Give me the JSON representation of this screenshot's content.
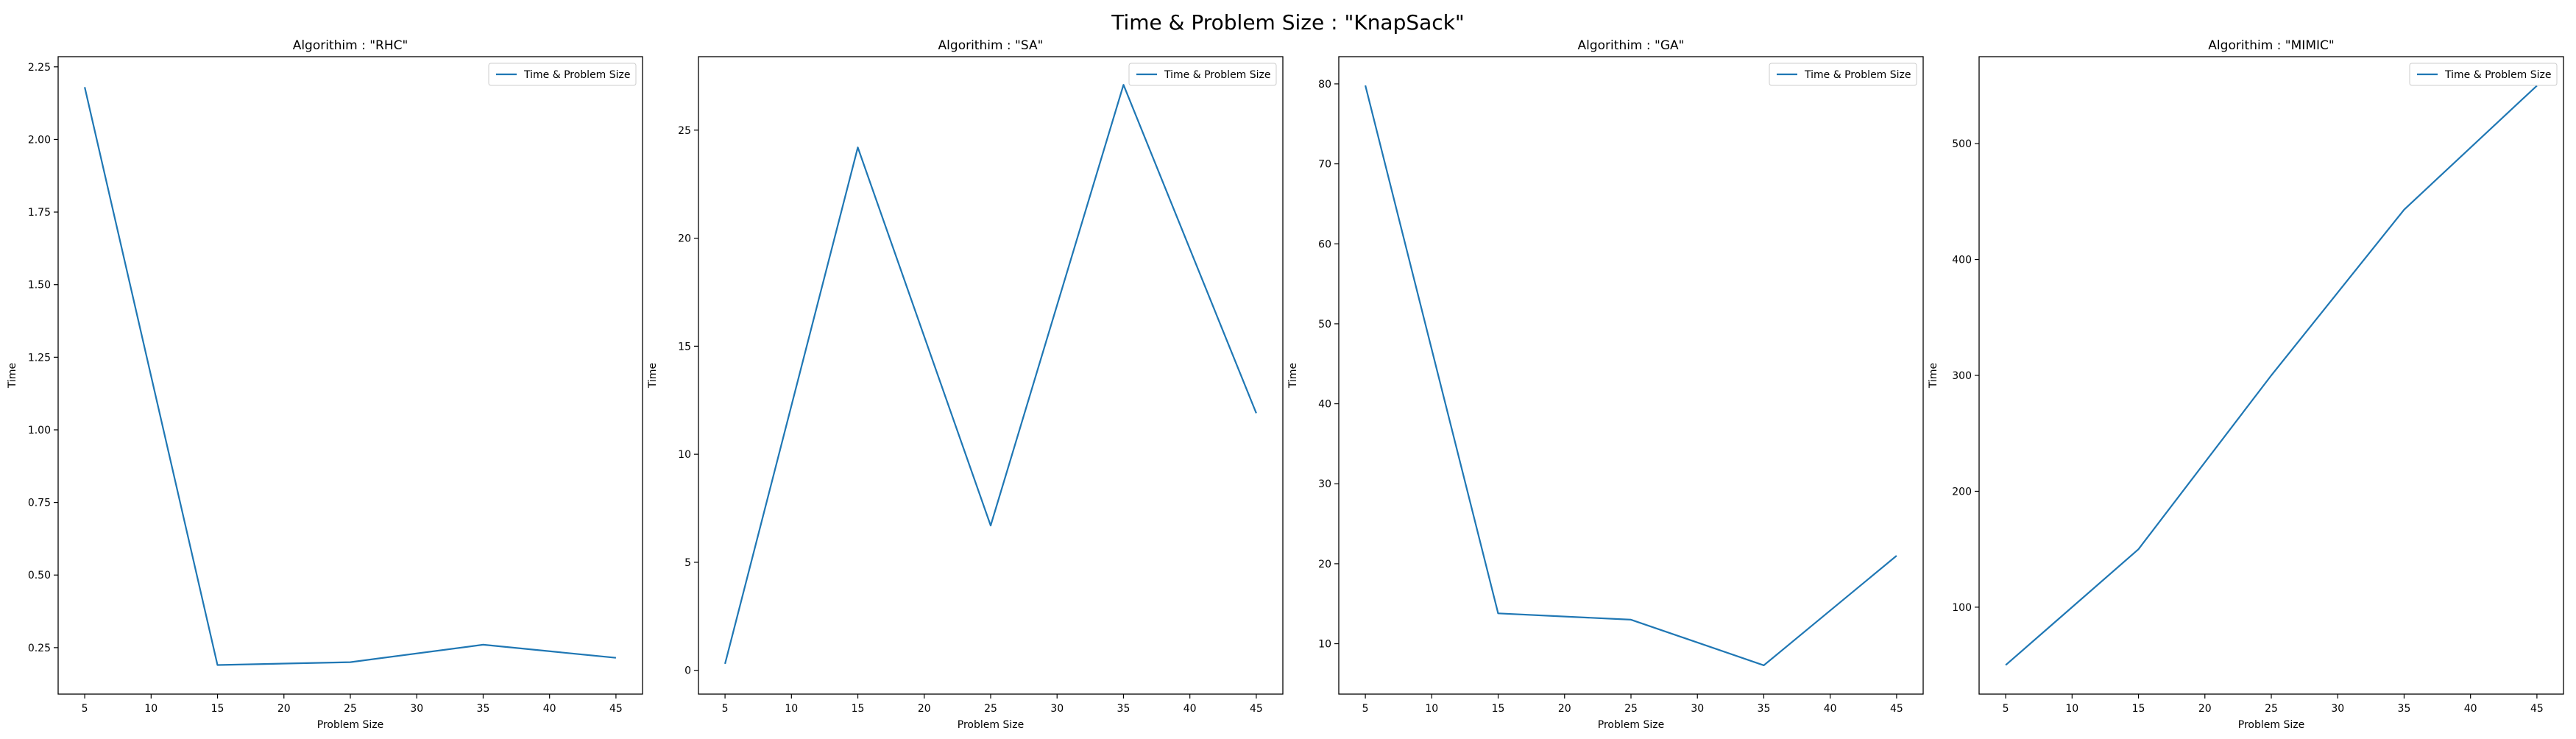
{
  "figure": {
    "suptitle": "Time & Problem Size : \"KnapSack\""
  },
  "colors": {
    "line": "#1f77b4",
    "axes": "#000000",
    "legend_border": "#cccccc"
  },
  "chart_data": [
    {
      "type": "line",
      "title": "Algorithim : \"RHC\"",
      "xlabel": "Problem Size",
      "ylabel": "Time",
      "legend_position": "top-right",
      "grid": false,
      "xlim": [
        3,
        47
      ],
      "ylim": [
        0.09,
        2.285
      ],
      "xticks": [
        5,
        10,
        15,
        20,
        25,
        30,
        35,
        40,
        45
      ],
      "xtick_labels": [
        "5",
        "10",
        "15",
        "20",
        "25",
        "30",
        "35",
        "40",
        "45"
      ],
      "yticks": [
        0.25,
        0.5,
        0.75,
        1.0,
        1.25,
        1.5,
        1.75,
        2.0,
        2.25
      ],
      "ytick_labels": [
        "0.25",
        "0.50",
        "0.75",
        "1.00",
        "1.25",
        "1.50",
        "1.75",
        "2.00",
        "2.25"
      ],
      "series": [
        {
          "name": "Time & Problem Size",
          "x": [
            5,
            15,
            25,
            35,
            45
          ],
          "y": [
            2.18,
            0.19,
            0.2,
            0.26,
            0.215
          ]
        }
      ]
    },
    {
      "type": "line",
      "title": "Algorithim : \"SA\"",
      "xlabel": "Problem Size",
      "ylabel": "Time",
      "legend_position": "top-right",
      "grid": false,
      "xlim": [
        3,
        47
      ],
      "ylim": [
        -1.1,
        28.4
      ],
      "xticks": [
        5,
        10,
        15,
        20,
        25,
        30,
        35,
        40,
        45
      ],
      "xtick_labels": [
        "5",
        "10",
        "15",
        "20",
        "25",
        "30",
        "35",
        "40",
        "45"
      ],
      "yticks": [
        0,
        5,
        10,
        15,
        20,
        25
      ],
      "ytick_labels": [
        "0",
        "5",
        "10",
        "15",
        "20",
        "25"
      ],
      "series": [
        {
          "name": "Time & Problem Size",
          "x": [
            5,
            15,
            25,
            35,
            45
          ],
          "y": [
            0.3,
            24.2,
            6.7,
            27.1,
            11.9
          ]
        }
      ]
    },
    {
      "type": "line",
      "title": "Algorithim : \"GA\"",
      "xlabel": "Problem Size",
      "ylabel": "Time",
      "legend_position": "top-right",
      "grid": false,
      "xlim": [
        3,
        47
      ],
      "ylim": [
        3.7,
        83.4
      ],
      "xticks": [
        5,
        10,
        15,
        20,
        25,
        30,
        35,
        40,
        45
      ],
      "xtick_labels": [
        "5",
        "10",
        "15",
        "20",
        "25",
        "30",
        "35",
        "40",
        "45"
      ],
      "yticks": [
        10,
        20,
        30,
        40,
        50,
        60,
        70,
        80
      ],
      "ytick_labels": [
        "10",
        "20",
        "30",
        "40",
        "50",
        "60",
        "70",
        "80"
      ],
      "series": [
        {
          "name": "Time & Problem Size",
          "x": [
            5,
            15,
            25,
            35,
            45
          ],
          "y": [
            79.8,
            13.8,
            13.0,
            7.3,
            21.0
          ]
        }
      ]
    },
    {
      "type": "line",
      "title": "Algorithim : \"MIMIC\"",
      "xlabel": "Problem Size",
      "ylabel": "Time",
      "legend_position": "top-right",
      "grid": false,
      "xlim": [
        3,
        47
      ],
      "ylim": [
        25,
        575
      ],
      "xticks": [
        5,
        10,
        15,
        20,
        25,
        30,
        35,
        40,
        45
      ],
      "xtick_labels": [
        "5",
        "10",
        "15",
        "20",
        "25",
        "30",
        "35",
        "40",
        "45"
      ],
      "yticks": [
        100,
        200,
        300,
        400,
        500
      ],
      "ytick_labels": [
        "100",
        "200",
        "300",
        "400",
        "500"
      ],
      "series": [
        {
          "name": "Time & Problem Size",
          "x": [
            5,
            15,
            25,
            35,
            45
          ],
          "y": [
            50,
            150,
            300,
            443,
            550
          ]
        }
      ]
    }
  ]
}
